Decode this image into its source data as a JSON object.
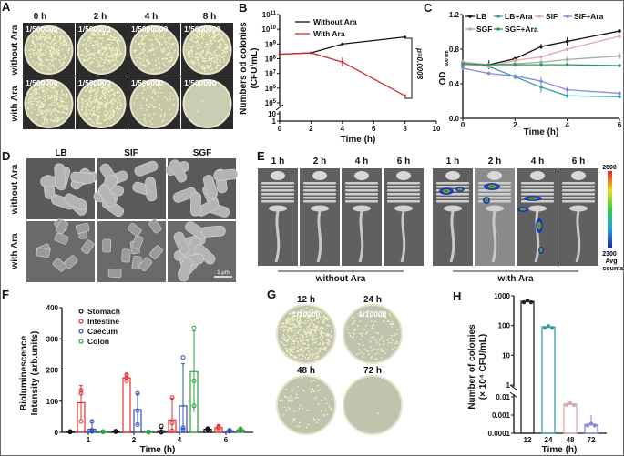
{
  "panels": {
    "A": {
      "label": "A",
      "columns": [
        "0 h",
        "2 h",
        "4 h",
        "8 h"
      ],
      "rows": [
        "without Ara",
        "with Ara"
      ],
      "dilutions": [
        [
          "1/500000",
          "1/500000",
          "1/5000000",
          "1/5000000"
        ],
        [
          "1/500000",
          "1/500000",
          "1/500000",
          "1/500000"
        ]
      ]
    },
    "B": {
      "label": "B"
    },
    "C": {
      "label": "C"
    },
    "D": {
      "label": "D",
      "columns": [
        "LB",
        "SIF",
        "SGF"
      ],
      "rows": [
        "without Ara",
        "with Ara"
      ],
      "scale_bar": "1 μm"
    },
    "E": {
      "label": "E",
      "columns": [
        "1 h",
        "2 h",
        "4 h",
        "6 h",
        "1 h",
        "2 h",
        "4 h",
        "6 h"
      ],
      "groups": [
        "without Ara",
        "with Ara"
      ],
      "colorbar": {
        "max": "2800",
        "min": "2300",
        "unit_line1": "Avg",
        "unit_line2": "counts"
      }
    },
    "F": {
      "label": "F"
    },
    "G": {
      "label": "G",
      "plates": [
        {
          "time": "12 h",
          "dilution": "1/10000"
        },
        {
          "time": "24 h",
          "dilution": "1/10000"
        },
        {
          "time": "48 h",
          "dilution": ""
        },
        {
          "time": "72 h",
          "dilution": ""
        }
      ]
    },
    "H": {
      "label": "H"
    }
  },
  "chart_data": [
    {
      "id": "B",
      "type": "line",
      "xlabel": "Time (h)",
      "ylabel_line1": "Numbers od colonies",
      "ylabel_line2": "(CFU/mL)",
      "xlim": [
        0,
        10
      ],
      "xticks": [
        "0",
        "2",
        "4",
        "6",
        "8",
        "10"
      ],
      "yscale": "log",
      "yticks": [
        "1",
        "10",
        "10^5",
        "10^6",
        "10^7",
        "10^8",
        "10^9",
        "10^10",
        "10^11"
      ],
      "annotation": "p=0.0008",
      "legend_position": "top-left",
      "series": [
        {
          "name": "Without Ara",
          "color": "#111111",
          "x": [
            0,
            2,
            4,
            8
          ],
          "y": [
            200000000.0,
            250000000.0,
            1000000000.0,
            3000000000.0
          ],
          "err_hi": [
            230000000.0,
            280000000.0,
            1100000000.0,
            3600000000.0
          ],
          "err_lo": [
            180000000.0,
            230000000.0,
            900000000.0,
            2500000000.0
          ]
        },
        {
          "name": "With Ara",
          "color": "#d03030",
          "x": [
            0,
            2,
            4,
            8
          ],
          "y": [
            200000000.0,
            250000000.0,
            60000000.0,
            300000.0
          ],
          "err_hi": [
            230000000.0,
            280000000.0,
            120000000.0,
            400000.0
          ],
          "err_lo": [
            180000000.0,
            230000000.0,
            30000000.0,
            230000.0
          ]
        }
      ]
    },
    {
      "id": "C",
      "type": "line",
      "xlabel": "Time (h)",
      "ylabel": "OD",
      "ylabel_sub": "600 nm",
      "xlim": [
        0,
        6
      ],
      "ylim": [
        0,
        1.2
      ],
      "xticks": [
        "0",
        "2",
        "4",
        "6"
      ],
      "yticks": [
        "0.0",
        "0.4",
        "0.8",
        "1.2"
      ],
      "legend_position": "top",
      "x": [
        0,
        1,
        2,
        3,
        4,
        6
      ],
      "series": [
        {
          "name": "LB",
          "color": "#111111",
          "marker": "circle",
          "y": [
            0.61,
            0.62,
            0.69,
            0.83,
            0.89,
            1.01
          ],
          "err": [
            0.02,
            0.05,
            0.01,
            0.03,
            0.05,
            0.02
          ]
        },
        {
          "name": "LB+Ara",
          "color": "#3a9fa3",
          "marker": "triangle",
          "y": [
            0.65,
            0.6,
            0.48,
            0.36,
            0.26,
            0.25
          ],
          "err": [
            0.02,
            0.02,
            0.03,
            0.06,
            0.03,
            0.02
          ]
        },
        {
          "name": "SIF",
          "color": "#e0a8ac",
          "marker": "triangle-down",
          "y": [
            0.62,
            0.6,
            0.67,
            0.71,
            0.8,
            0.95
          ],
          "err": [
            0.02,
            0.02,
            0.02,
            0.02,
            0.02,
            0.03
          ]
        },
        {
          "name": "SIF+Ara",
          "color": "#8a88dc",
          "marker": "diamond",
          "y": [
            0.58,
            0.52,
            0.49,
            0.43,
            0.33,
            0.29
          ],
          "err": [
            0.02,
            0.02,
            0.02,
            0.05,
            0.04,
            0.02
          ]
        },
        {
          "name": "SGF",
          "color": "#a8a8a8",
          "marker": "square",
          "y": [
            0.65,
            0.62,
            0.63,
            0.65,
            0.68,
            0.72
          ],
          "err": [
            0.03,
            0.02,
            0.02,
            0.03,
            0.04,
            0.04
          ]
        },
        {
          "name": "SGF+Ara",
          "color": "#2f9a5c",
          "marker": "triangle",
          "y": [
            0.63,
            0.62,
            0.62,
            0.62,
            0.62,
            0.61
          ],
          "err": [
            0.01,
            0.01,
            0.02,
            0.02,
            0.02,
            0.02
          ]
        }
      ]
    },
    {
      "id": "F",
      "type": "bar",
      "xlabel": "Time (h)",
      "ylabel_line1": "Bioluminescence",
      "ylabel_line2": "Intensity (arb.units)",
      "ylim": [
        0,
        400
      ],
      "yticks": [
        "0",
        "100",
        "200",
        "300",
        "400"
      ],
      "categories": [
        "1",
        "2",
        "4",
        "6"
      ],
      "legend_position": "top-left",
      "series": [
        {
          "name": "Stomach",
          "color": "#111111",
          "marker": "circle",
          "values": [
            2,
            3,
            5,
            10
          ],
          "err": [
            2,
            1,
            8,
            3
          ],
          "points": [
            [
              1,
              2,
              3
            ],
            [
              2,
              3,
              4
            ],
            [
              0,
              2,
              20
            ],
            [
              8,
              10,
              12
            ]
          ]
        },
        {
          "name": "Intestine",
          "color": "#e03030",
          "marker": "square",
          "values": [
            95,
            175,
            40,
            15
          ],
          "err": [
            55,
            12,
            70,
            8
          ],
          "points": [
            [
              35,
              125,
              135
            ],
            [
              165,
              175,
              185
            ],
            [
              5,
              30,
              112
            ],
            [
              10,
              15,
              20
            ]
          ]
        },
        {
          "name": "Caecum",
          "color": "#3050b0",
          "marker": "triangle",
          "values": [
            10,
            73,
            85,
            5
          ],
          "err": [
            28,
            50,
            135,
            3
          ],
          "points": [
            [
              3,
              7,
              35
            ],
            [
              25,
              70,
              125
            ],
            [
              8,
              15,
              240
            ],
            [
              3,
              5,
              7
            ]
          ]
        },
        {
          "name": "Colon",
          "color": "#30a040",
          "marker": "triangle-down",
          "values": [
            2,
            1,
            195,
            8
          ],
          "err": [
            1,
            1,
            130,
            5
          ],
          "points": [
            [
              1,
              2,
              3
            ],
            [
              0,
              1,
              2
            ],
            [
              85,
              165,
              335
            ],
            [
              5,
              8,
              12
            ]
          ]
        }
      ]
    },
    {
      "id": "H",
      "type": "bar",
      "xlabel": "Time (h)",
      "ylabel_line1": "Number of colonies",
      "ylabel_line2": "(× 10⁴ CFU/mL)",
      "yscale": "log-broken",
      "yticks": [
        "0.0001",
        "0.001",
        "0.01",
        "1",
        "10",
        "100",
        "1000"
      ],
      "categories": [
        "12",
        "24",
        "48",
        "72"
      ],
      "values": [
        650,
        90,
        0.004,
        0.0003
      ],
      "err_hi": [
        700,
        100,
        0.0045,
        0.001
      ],
      "colors": [
        "#222222",
        "#3a9fa3",
        "#d9a8ac",
        "#8a88dc"
      ]
    }
  ]
}
